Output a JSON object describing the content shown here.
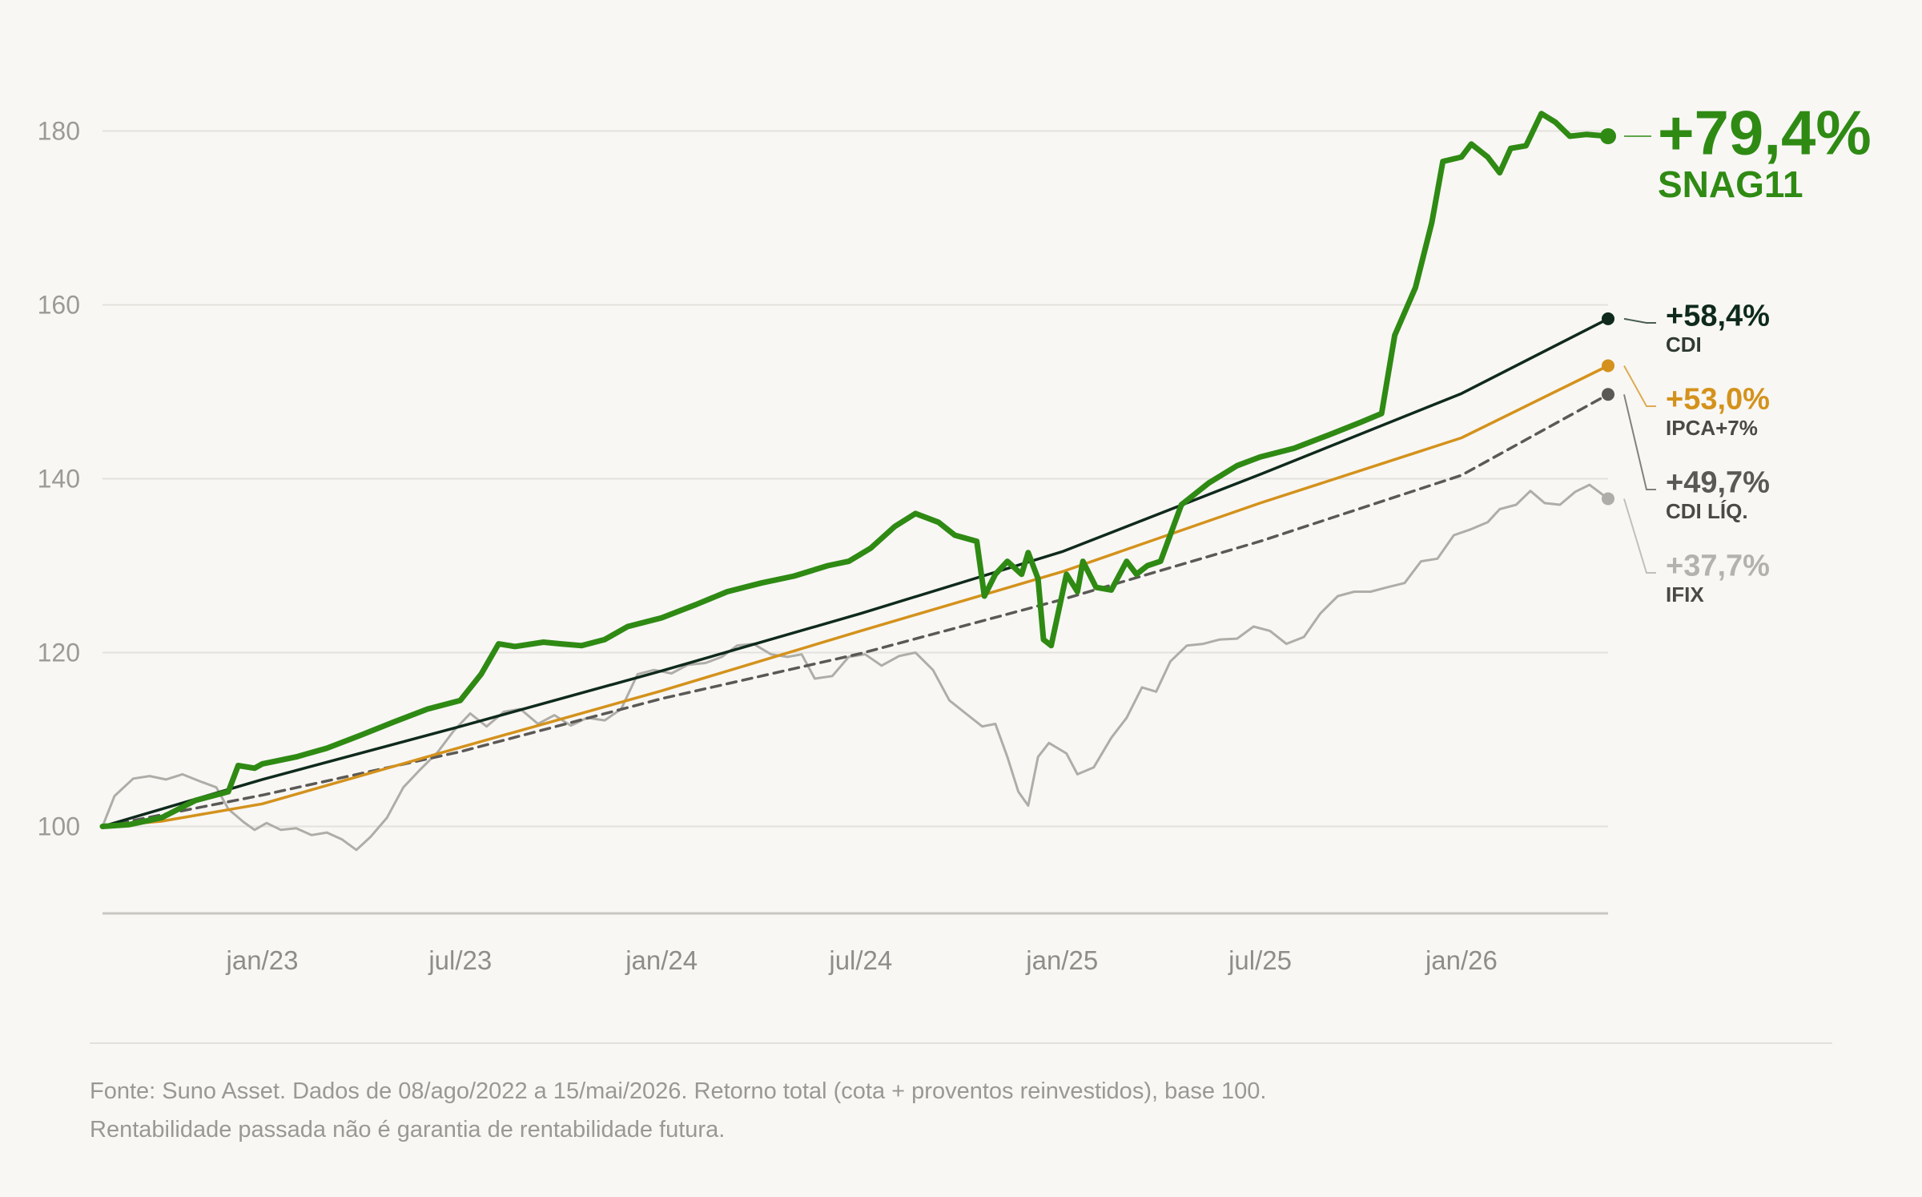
{
  "chart_data": {
    "type": "line",
    "title": "",
    "xlabel": "",
    "ylabel": "",
    "x_range": [
      "2022-08-08",
      "2026-05-15"
    ],
    "ylim": [
      90,
      190
    ],
    "yticks": [
      100,
      120,
      140,
      160,
      180
    ],
    "ytick_labels": [
      "100",
      "120",
      "140",
      "160",
      "180"
    ],
    "xticks": [
      {
        "date": "2023-01-01",
        "label": "jan/23"
      },
      {
        "date": "2023-07-01",
        "label": "jul/23"
      },
      {
        "date": "2024-01-01",
        "label": "jan/24"
      },
      {
        "date": "2024-07-01",
        "label": "jul/24"
      },
      {
        "date": "2025-01-01",
        "label": "jan/25"
      },
      {
        "date": "2025-07-01",
        "label": "jul/25"
      },
      {
        "date": "2026-01-01",
        "label": "jan/26"
      }
    ],
    "grid": true,
    "legend": "end-labels-right",
    "series": [
      {
        "name": "IFIX",
        "end_label": "+37,7%",
        "color": "#aeada7",
        "width": 3,
        "dashed": false,
        "points": [
          [
            "2022-08-08",
            100
          ],
          [
            "2022-08-19",
            103.5
          ],
          [
            "2022-09-05",
            105.5
          ],
          [
            "2022-09-20",
            105.8
          ],
          [
            "2022-10-05",
            105.4
          ],
          [
            "2022-10-20",
            106
          ],
          [
            "2022-11-05",
            105.2
          ],
          [
            "2022-11-20",
            104.5
          ],
          [
            "2022-12-01",
            102
          ],
          [
            "2022-12-15",
            100.5
          ],
          [
            "2022-12-25",
            99.6
          ],
          [
            "2023-01-05",
            100.4
          ],
          [
            "2023-01-18",
            99.6
          ],
          [
            "2023-02-01",
            99.8
          ],
          [
            "2023-02-15",
            99
          ],
          [
            "2023-03-01",
            99.3
          ],
          [
            "2023-03-15",
            98.5
          ],
          [
            "2023-03-28",
            97.3
          ],
          [
            "2023-04-10",
            98.8
          ],
          [
            "2023-04-25",
            101
          ],
          [
            "2023-05-10",
            104.5
          ],
          [
            "2023-05-25",
            106.5
          ],
          [
            "2023-06-10",
            108.5
          ],
          [
            "2023-06-25",
            111
          ],
          [
            "2023-07-10",
            113
          ],
          [
            "2023-07-25",
            111.5
          ],
          [
            "2023-08-10",
            113.2
          ],
          [
            "2023-08-25",
            113.5
          ],
          [
            "2023-09-10",
            111.8
          ],
          [
            "2023-09-25",
            112.8
          ],
          [
            "2023-10-10",
            111.6
          ],
          [
            "2023-10-25",
            112.5
          ],
          [
            "2023-11-10",
            112.2
          ],
          [
            "2023-11-25",
            113.5
          ],
          [
            "2023-12-10",
            117.5
          ],
          [
            "2023-12-25",
            118
          ],
          [
            "2024-01-10",
            117.6
          ],
          [
            "2024-01-25",
            118.6
          ],
          [
            "2024-02-10",
            118.8
          ],
          [
            "2024-02-25",
            119.5
          ],
          [
            "2024-03-10",
            120.8
          ],
          [
            "2024-03-25",
            121
          ],
          [
            "2024-04-10",
            119.8
          ],
          [
            "2024-04-25",
            119.5
          ],
          [
            "2024-05-08",
            119.8
          ],
          [
            "2024-05-20",
            117
          ],
          [
            "2024-06-05",
            117.3
          ],
          [
            "2024-06-20",
            119.5
          ],
          [
            "2024-07-05",
            119.8
          ],
          [
            "2024-07-20",
            118.5
          ],
          [
            "2024-08-05",
            119.6
          ],
          [
            "2024-08-20",
            120
          ],
          [
            "2024-09-05",
            118
          ],
          [
            "2024-09-20",
            114.5
          ],
          [
            "2024-10-05",
            113
          ],
          [
            "2024-10-20",
            111.5
          ],
          [
            "2024-11-01",
            111.8
          ],
          [
            "2024-11-12",
            108
          ],
          [
            "2024-11-22",
            104
          ],
          [
            "2024-12-01",
            102.4
          ],
          [
            "2024-12-10",
            108
          ],
          [
            "2024-12-20",
            109.6
          ],
          [
            "2025-01-05",
            108.4
          ],
          [
            "2025-01-15",
            106
          ],
          [
            "2025-01-30",
            106.8
          ],
          [
            "2025-02-15",
            110.2
          ],
          [
            "2025-03-01",
            112.5
          ],
          [
            "2025-03-15",
            116
          ],
          [
            "2025-03-28",
            115.5
          ],
          [
            "2025-04-10",
            119
          ],
          [
            "2025-04-25",
            120.8
          ],
          [
            "2025-05-10",
            121
          ],
          [
            "2025-05-25",
            121.5
          ],
          [
            "2025-06-10",
            121.6
          ],
          [
            "2025-06-25",
            123
          ],
          [
            "2025-07-10",
            122.5
          ],
          [
            "2025-07-25",
            121
          ],
          [
            "2025-08-10",
            121.8
          ],
          [
            "2025-08-25",
            124.5
          ],
          [
            "2025-09-10",
            126.5
          ],
          [
            "2025-09-25",
            127
          ],
          [
            "2025-10-10",
            127
          ],
          [
            "2025-10-25",
            127.5
          ],
          [
            "2025-11-10",
            128
          ],
          [
            "2025-11-25",
            130.5
          ],
          [
            "2025-12-10",
            130.8
          ],
          [
            "2025-12-25",
            133.5
          ],
          [
            "2026-01-10",
            134.2
          ],
          [
            "2026-01-25",
            135
          ],
          [
            "2026-02-05",
            136.5
          ],
          [
            "2026-02-20",
            137
          ],
          [
            "2026-03-05",
            138.6
          ],
          [
            "2026-03-18",
            137.2
          ],
          [
            "2026-04-01",
            137
          ],
          [
            "2026-04-15",
            138.5
          ],
          [
            "2026-04-28",
            139.3
          ],
          [
            "2026-05-15",
            137.7
          ]
        ]
      },
      {
        "name": "CDI LÍQ.",
        "end_label": "+49,7%",
        "color": "#5a5955",
        "width": 3.5,
        "dashed": true,
        "points": [
          [
            "2022-08-08",
            100
          ],
          [
            "2023-01-01",
            103.6
          ],
          [
            "2023-07-01",
            108.6
          ],
          [
            "2024-01-01",
            114.7
          ],
          [
            "2024-07-01",
            119.9
          ],
          [
            "2025-01-01",
            126.1
          ],
          [
            "2025-07-01",
            132.8
          ],
          [
            "2026-01-01",
            140.4
          ],
          [
            "2026-05-15",
            149.7
          ]
        ]
      },
      {
        "name": "IPCA+7%",
        "end_label": "+53,0%",
        "color": "#d4921c",
        "width": 3.5,
        "dashed": false,
        "points": [
          [
            "2022-08-08",
            100
          ],
          [
            "2022-10-01",
            100.6
          ],
          [
            "2023-01-01",
            102.6
          ],
          [
            "2023-07-01",
            109.1
          ],
          [
            "2024-01-01",
            115.6
          ],
          [
            "2024-07-01",
            122.5
          ],
          [
            "2025-01-01",
            129.3
          ],
          [
            "2025-07-01",
            137.2
          ],
          [
            "2026-01-01",
            144.7
          ],
          [
            "2026-05-15",
            153.0
          ]
        ]
      },
      {
        "name": "CDI",
        "end_label": "+58,4%",
        "color": "#0f2a1c",
        "width": 3.5,
        "dashed": false,
        "points": [
          [
            "2022-08-08",
            100
          ],
          [
            "2023-01-01",
            105.4
          ],
          [
            "2023-07-01",
            111.5
          ],
          [
            "2024-01-01",
            117.9
          ],
          [
            "2024-07-01",
            124.5
          ],
          [
            "2025-01-01",
            131.6
          ],
          [
            "2025-07-01",
            140.5
          ],
          [
            "2026-01-01",
            149.8
          ],
          [
            "2026-05-15",
            158.4
          ]
        ]
      },
      {
        "name": "SNAG11",
        "end_label": "+79,4%",
        "color": "#2f8a14",
        "width": 7,
        "dashed": false,
        "points": [
          [
            "2022-08-08",
            100
          ],
          [
            "2022-09-01",
            100.2
          ],
          [
            "2022-10-01",
            101
          ],
          [
            "2022-11-01",
            103
          ],
          [
            "2022-12-01",
            104
          ],
          [
            "2022-12-10",
            107
          ],
          [
            "2022-12-25",
            106.7
          ],
          [
            "2023-01-01",
            107.2
          ],
          [
            "2023-02-01",
            108
          ],
          [
            "2023-03-01",
            109
          ],
          [
            "2023-04-01",
            110.5
          ],
          [
            "2023-05-01",
            112
          ],
          [
            "2023-06-01",
            113.5
          ],
          [
            "2023-07-01",
            114.5
          ],
          [
            "2023-07-20",
            117.5
          ],
          [
            "2023-08-05",
            121
          ],
          [
            "2023-08-20",
            120.7
          ],
          [
            "2023-09-15",
            121.2
          ],
          [
            "2023-10-01",
            121
          ],
          [
            "2023-10-20",
            120.8
          ],
          [
            "2023-11-10",
            121.5
          ],
          [
            "2023-12-01",
            123
          ],
          [
            "2024-01-01",
            124
          ],
          [
            "2024-02-01",
            125.5
          ],
          [
            "2024-03-01",
            127
          ],
          [
            "2024-04-01",
            128
          ],
          [
            "2024-05-01",
            128.8
          ],
          [
            "2024-06-01",
            130
          ],
          [
            "2024-06-20",
            130.5
          ],
          [
            "2024-07-10",
            132
          ],
          [
            "2024-08-01",
            134.5
          ],
          [
            "2024-08-20",
            136
          ],
          [
            "2024-09-10",
            135
          ],
          [
            "2024-09-25",
            133.5
          ],
          [
            "2024-10-15",
            132.8
          ],
          [
            "2024-10-22",
            126.5
          ],
          [
            "2024-11-01",
            129
          ],
          [
            "2024-11-12",
            130.5
          ],
          [
            "2024-11-25",
            129
          ],
          [
            "2024-12-01",
            131.5
          ],
          [
            "2024-12-10",
            128.5
          ],
          [
            "2024-12-15",
            121.5
          ],
          [
            "2024-12-22",
            120.8
          ],
          [
            "2025-01-05",
            129
          ],
          [
            "2025-01-15",
            127
          ],
          [
            "2025-01-20",
            130.5
          ],
          [
            "2025-02-01",
            127.5
          ],
          [
            "2025-02-15",
            127.2
          ],
          [
            "2025-03-01",
            130.5
          ],
          [
            "2025-03-10",
            129
          ],
          [
            "2025-03-20",
            130
          ],
          [
            "2025-04-01",
            130.5
          ],
          [
            "2025-04-20",
            137
          ],
          [
            "2025-05-15",
            139.5
          ],
          [
            "2025-06-10",
            141.5
          ],
          [
            "2025-07-01",
            142.5
          ],
          [
            "2025-08-01",
            143.5
          ],
          [
            "2025-09-01",
            145
          ],
          [
            "2025-10-01",
            146.5
          ],
          [
            "2025-10-20",
            147.5
          ],
          [
            "2025-11-01",
            156.5
          ],
          [
            "2025-11-20",
            162
          ],
          [
            "2025-12-05",
            169.5
          ],
          [
            "2025-12-15",
            176.5
          ],
          [
            "2026-01-01",
            177
          ],
          [
            "2026-01-10",
            178.5
          ],
          [
            "2026-01-25",
            177
          ],
          [
            "2026-02-05",
            175.2
          ],
          [
            "2026-02-15",
            178
          ],
          [
            "2026-03-01",
            178.3
          ],
          [
            "2026-03-15",
            182
          ],
          [
            "2026-03-28",
            181
          ],
          [
            "2026-04-10",
            179.4
          ],
          [
            "2026-04-25",
            179.6
          ],
          [
            "2026-05-15",
            179.4
          ]
        ]
      }
    ]
  },
  "footer": {
    "line1": "Fonte: Suno Asset. Dados de 08/ago/2022 a 15/mai/2026. Retorno total (cota + proventos reinvestidos), base 100.",
    "line2": "Rentabilidade passada não é garantia de rentabilidade futura."
  }
}
